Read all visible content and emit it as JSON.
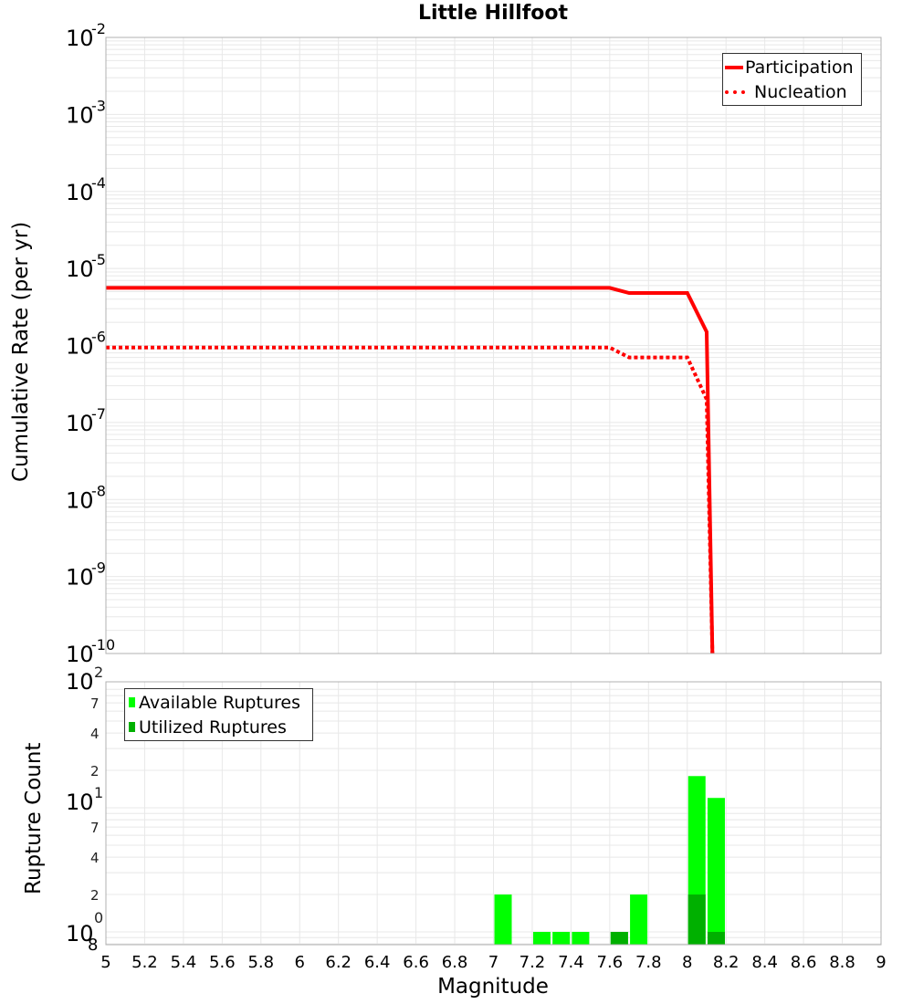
{
  "title": "Little Hillfoot",
  "top_panel": {
    "ylabel": "Cumulative Rate (per yr)",
    "yticks": [
      {
        "base": "10",
        "exp": "-2"
      },
      {
        "base": "10",
        "exp": "-3"
      },
      {
        "base": "10",
        "exp": "-4"
      },
      {
        "base": "10",
        "exp": "-5"
      },
      {
        "base": "10",
        "exp": "-6"
      },
      {
        "base": "10",
        "exp": "-7"
      },
      {
        "base": "10",
        "exp": "-8"
      },
      {
        "base": "10",
        "exp": "-9"
      },
      {
        "base": "10",
        "exp": "-10"
      }
    ],
    "legend": [
      {
        "label": "Participation",
        "style": "solid",
        "color": "#ff0000"
      },
      {
        "label": "Nucleation",
        "style": "dotted",
        "color": "#ff0000"
      }
    ]
  },
  "bottom_panel": {
    "ylabel": "Rupture Count",
    "xlabel": "Magnitude",
    "legend": [
      {
        "label": "Available Ruptures",
        "color": "#00ff00"
      },
      {
        "label": "Utilized Ruptures",
        "color": "#00b000"
      }
    ]
  },
  "chart_data": [
    {
      "type": "line",
      "title": "Little Hillfoot",
      "xlabel": "Magnitude",
      "ylabel": "Cumulative Rate (per yr)",
      "yscale": "log",
      "xlim": [
        5,
        9
      ],
      "ylim": [
        1e-10,
        0.01
      ],
      "grid": true,
      "legend_position": "upper right",
      "series": [
        {
          "name": "Participation",
          "style": "solid",
          "color": "#ff0000",
          "x": [
            5.0,
            7.6,
            7.7,
            8.0,
            8.1,
            8.13
          ],
          "y": [
            5.6e-06,
            5.6e-06,
            4.8e-06,
            4.8e-06,
            1.5e-06,
            1e-10
          ]
        },
        {
          "name": "Nucleation",
          "style": "dotted",
          "color": "#ff0000",
          "x": [
            5.0,
            7.6,
            7.7,
            8.0,
            8.1,
            8.13
          ],
          "y": [
            9.4e-07,
            9.4e-07,
            7e-07,
            7e-07,
            2e-07,
            1e-10
          ]
        }
      ]
    },
    {
      "type": "bar",
      "xlabel": "Magnitude",
      "ylabel": "Rupture Count",
      "yscale": "log",
      "xlim": [
        5,
        9
      ],
      "ylim": [
        0.8,
        100
      ],
      "xticks": [
        "5",
        "5.2",
        "5.4",
        "5.6",
        "5.8",
        "6",
        "6.2",
        "6.4",
        "6.6",
        "6.8",
        "7",
        "7.2",
        "7.4",
        "7.6",
        "7.8",
        "8",
        "8.2",
        "8.4",
        "8.6",
        "8.8",
        "9"
      ],
      "yticks_major": [
        "10^0",
        "10^1",
        "10^2"
      ],
      "yticks_minor": [
        "2",
        "4",
        "7"
      ],
      "grid": true,
      "legend_position": "upper left",
      "categories": [
        7.0,
        7.2,
        7.3,
        7.4,
        7.6,
        7.7,
        8.0,
        8.1
      ],
      "series": [
        {
          "name": "Available Ruptures",
          "color": "#00ff00",
          "values": [
            2,
            1,
            1,
            1,
            1,
            2,
            18,
            12
          ]
        },
        {
          "name": "Utilized Ruptures",
          "color": "#00b000",
          "values": [
            0,
            0,
            0,
            0,
            1,
            0,
            2,
            1
          ]
        }
      ]
    }
  ]
}
